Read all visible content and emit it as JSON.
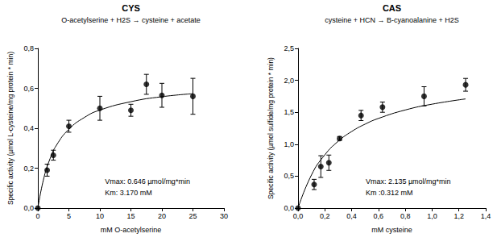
{
  "chart_data": [
    {
      "type": "scatter",
      "title": "CYS",
      "subtitle": "O-acetylserine + H2S → cysteine + acetate",
      "x_label": "mM O-acetylserine",
      "y_label": "Specific activity (µmol L-cysteine/mg protein * min)",
      "annotations": [
        "Vmax: 0.646 µmol/mg*min",
        "Km: 3.170 mM"
      ],
      "xlim": [
        0,
        30
      ],
      "xticks": [
        0,
        5,
        10,
        15,
        20,
        25,
        30
      ],
      "ylim": [
        0,
        0.8
      ],
      "yticks": [
        {
          "value": 0,
          "label": "0,0"
        },
        {
          "value": 0.2,
          "label": "0,2"
        },
        {
          "value": 0.4,
          "label": "0,4"
        },
        {
          "value": 0.6,
          "label": "0,6"
        },
        {
          "value": 0.8,
          "label": "0,8"
        }
      ],
      "grid": false,
      "series": [
        {
          "type": "scatter",
          "marker": "circle",
          "color": "#000000",
          "x": [
            0,
            1.5,
            2.5,
            5,
            10,
            15,
            17.5,
            20,
            25
          ],
          "values": [
            0,
            0.19,
            0.265,
            0.41,
            0.5,
            0.49,
            0.62,
            0.565,
            0.56
          ],
          "errors": [
            null,
            0.03,
            0.025,
            0.03,
            0.06,
            0.03,
            0.05,
            0.06,
            0.09
          ]
        },
        {
          "type": "line",
          "line_style": "solid",
          "color": "#000000",
          "x": [
            0,
            1,
            2,
            3,
            5,
            7.5,
            10,
            15,
            20,
            25
          ],
          "values": [
            0,
            0.155,
            0.25,
            0.315,
            0.395,
            0.454,
            0.491,
            0.533,
            0.558,
            0.573
          ]
        }
      ]
    },
    {
      "type": "scatter",
      "title": "CAS",
      "subtitle": "cysteine + HCN → B-cyanoalanine + H2S",
      "x_label": "mM cysteine",
      "y_label": "Specific activity (µmol sulfide/mg protein * min)",
      "annotations": [
        "Vmax: 2.135 µmol/mg*min",
        "Km :0.312 mM"
      ],
      "xlim": [
        0,
        1.4
      ],
      "xticks": [
        {
          "value": 0,
          "label": "0,0"
        },
        {
          "value": 0.2,
          "label": "0,2"
        },
        {
          "value": 0.4,
          "label": "0,4"
        },
        {
          "value": 0.6,
          "label": "0,6"
        },
        {
          "value": 0.8,
          "label": "0,8"
        },
        {
          "value": 1.0,
          "label": "1,0"
        },
        {
          "value": 1.2,
          "label": "1,2"
        },
        {
          "value": 1.4,
          "label": "1,4"
        }
      ],
      "ylim": [
        0,
        2.5
      ],
      "yticks": [
        {
          "value": 0,
          "label": "0,0"
        },
        {
          "value": 0.5,
          "label": "0,5"
        },
        {
          "value": 1.0,
          "label": "1,0"
        },
        {
          "value": 1.5,
          "label": "1,5"
        },
        {
          "value": 2.0,
          "label": "2,0"
        },
        {
          "value": 2.5,
          "label": "2,5"
        }
      ],
      "grid": false,
      "series": [
        {
          "type": "scatter",
          "marker": "circle",
          "color": "#000000",
          "x": [
            0,
            0.12,
            0.17,
            0.23,
            0.31,
            0.47,
            0.63,
            0.94,
            1.25
          ],
          "values": [
            0,
            0.37,
            0.65,
            0.71,
            1.09,
            1.45,
            1.58,
            1.75,
            1.93
          ],
          "errors": [
            null,
            0.08,
            0.17,
            0.12,
            0.03,
            0.08,
            0.08,
            0.15,
            0.1
          ]
        },
        {
          "type": "line",
          "line_style": "solid",
          "color": "#000000",
          "x": [
            0,
            0.1,
            0.2,
            0.3,
            0.4,
            0.5,
            0.6,
            0.8,
            1.0,
            1.25
          ],
          "values": [
            0,
            0.518,
            0.834,
            1.047,
            1.199,
            1.314,
            1.404,
            1.536,
            1.627,
            1.709
          ]
        }
      ]
    }
  ]
}
